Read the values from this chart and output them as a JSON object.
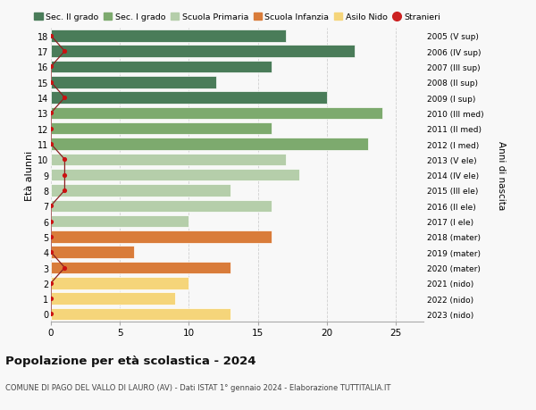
{
  "ages": [
    18,
    17,
    16,
    15,
    14,
    13,
    12,
    11,
    10,
    9,
    8,
    7,
    6,
    5,
    4,
    3,
    2,
    1,
    0
  ],
  "right_labels": [
    "2005 (V sup)",
    "2006 (IV sup)",
    "2007 (III sup)",
    "2008 (II sup)",
    "2009 (I sup)",
    "2010 (III med)",
    "2011 (II med)",
    "2012 (I med)",
    "2013 (V ele)",
    "2014 (IV ele)",
    "2015 (III ele)",
    "2016 (II ele)",
    "2017 (I ele)",
    "2018 (mater)",
    "2019 (mater)",
    "2020 (mater)",
    "2021 (nido)",
    "2022 (nido)",
    "2023 (nido)"
  ],
  "bar_values": [
    17,
    22,
    16,
    12,
    20,
    24,
    16,
    23,
    17,
    18,
    13,
    16,
    10,
    16,
    6,
    13,
    10,
    9,
    13
  ],
  "bar_colors": [
    "#4a7c59",
    "#4a7c59",
    "#4a7c59",
    "#4a7c59",
    "#4a7c59",
    "#7daa6e",
    "#7daa6e",
    "#7daa6e",
    "#b5ceaa",
    "#b5ceaa",
    "#b5ceaa",
    "#b5ceaa",
    "#b5ceaa",
    "#d97c3a",
    "#d97c3a",
    "#d97c3a",
    "#f5d57a",
    "#f5d57a",
    "#f5d57a"
  ],
  "stranieri_values": [
    0,
    1,
    0,
    0,
    1,
    0,
    0,
    0,
    1,
    1,
    1,
    0,
    0,
    0,
    0,
    1,
    0,
    0,
    0
  ],
  "legend_labels": [
    "Sec. II grado",
    "Sec. I grado",
    "Scuola Primaria",
    "Scuola Infanzia",
    "Asilo Nido",
    "Stranieri"
  ],
  "legend_colors": [
    "#4a7c59",
    "#7daa6e",
    "#b5ceaa",
    "#d97c3a",
    "#f5d57a",
    "#cc2222"
  ],
  "title_bold": "Popolazione per età scolastica - 2024",
  "subtitle": "COMUNE DI PAGO DEL VALLO DI LAURO (AV) - Dati ISTAT 1° gennaio 2024 - Elaborazione TUTTITALIA.IT",
  "ylabel_left": "Età alunni",
  "ylabel_right": "Anni di nascita",
  "xlim": [
    0,
    27
  ],
  "background_color": "#f8f8f8",
  "grid_color": "#d0d0d0"
}
